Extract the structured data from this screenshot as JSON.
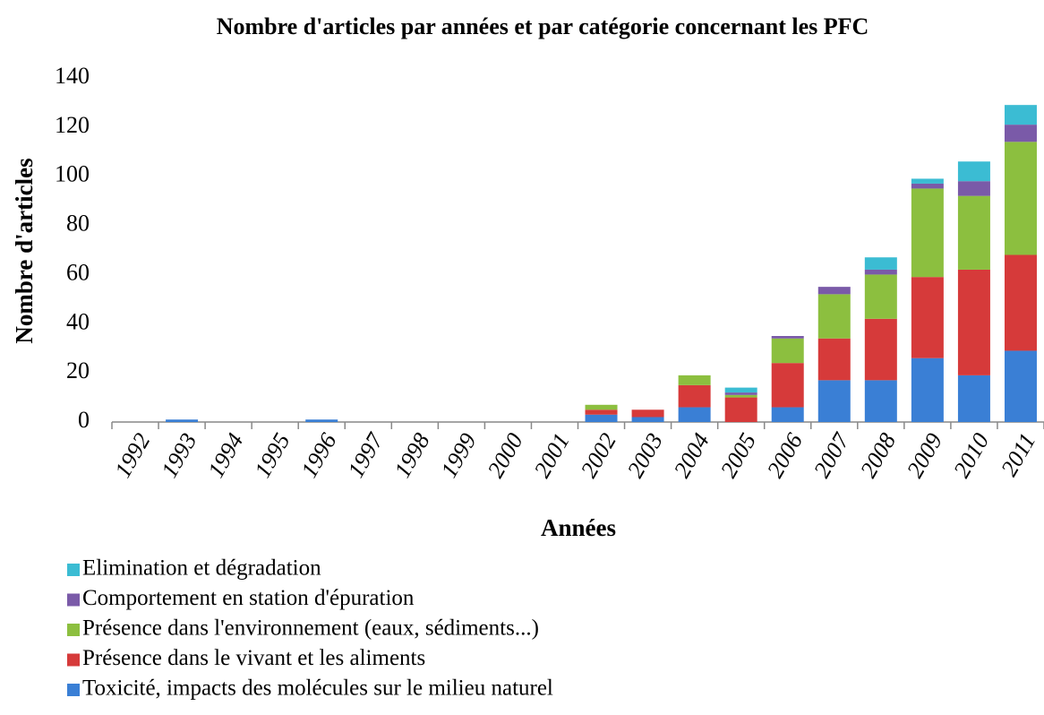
{
  "chart_data": {
    "type": "stacked_bar",
    "title": "Nombre d'articles par années et par catégorie concernant les PFC",
    "x_label": "Années",
    "y_label": "Nombre d'articles",
    "categories": [
      "1992",
      "1993",
      "1994",
      "1995",
      "1996",
      "1997",
      "1998",
      "1999",
      "2000",
      "2001",
      "2002",
      "2003",
      "2004",
      "2005",
      "2006",
      "2007",
      "2008",
      "2009",
      "2010",
      "2011"
    ],
    "series": [
      {
        "name": "Toxicité, impacts des molécules sur le milieu naturel",
        "color": "#3a7fd5",
        "values": [
          0,
          1,
          0,
          0,
          1,
          0,
          0,
          0,
          0,
          0,
          3,
          2,
          6,
          0,
          6,
          17,
          17,
          26,
          19,
          29
        ]
      },
      {
        "name": "Présence dans le vivant et les aliments",
        "color": "#d63a3a",
        "values": [
          0,
          0,
          0,
          0,
          0,
          0,
          0,
          0,
          0,
          0,
          2,
          3,
          9,
          10,
          18,
          17,
          25,
          33,
          43,
          39
        ]
      },
      {
        "name": "Présence dans l'environnement (eaux, sédiments...)",
        "color": "#8cbf3f",
        "values": [
          0,
          0,
          0,
          0,
          0,
          0,
          0,
          0,
          0,
          0,
          2,
          0,
          4,
          1,
          10,
          18,
          18,
          36,
          30,
          46
        ]
      },
      {
        "name": "Comportement en station d'épuration",
        "color": "#7a5aa8",
        "values": [
          0,
          0,
          0,
          0,
          0,
          0,
          0,
          0,
          0,
          0,
          0,
          0,
          0,
          1,
          1,
          3,
          2,
          2,
          6,
          7
        ]
      },
      {
        "name": "Elimination et dégradation",
        "color": "#3bbcd3",
        "values": [
          0,
          0,
          0,
          0,
          0,
          0,
          0,
          0,
          0,
          0,
          0,
          0,
          0,
          2,
          0,
          0,
          5,
          2,
          8,
          8
        ]
      }
    ],
    "ylim": [
      0,
      140
    ],
    "yticks": [
      0,
      20,
      40,
      60,
      80,
      100,
      120,
      140
    ]
  }
}
